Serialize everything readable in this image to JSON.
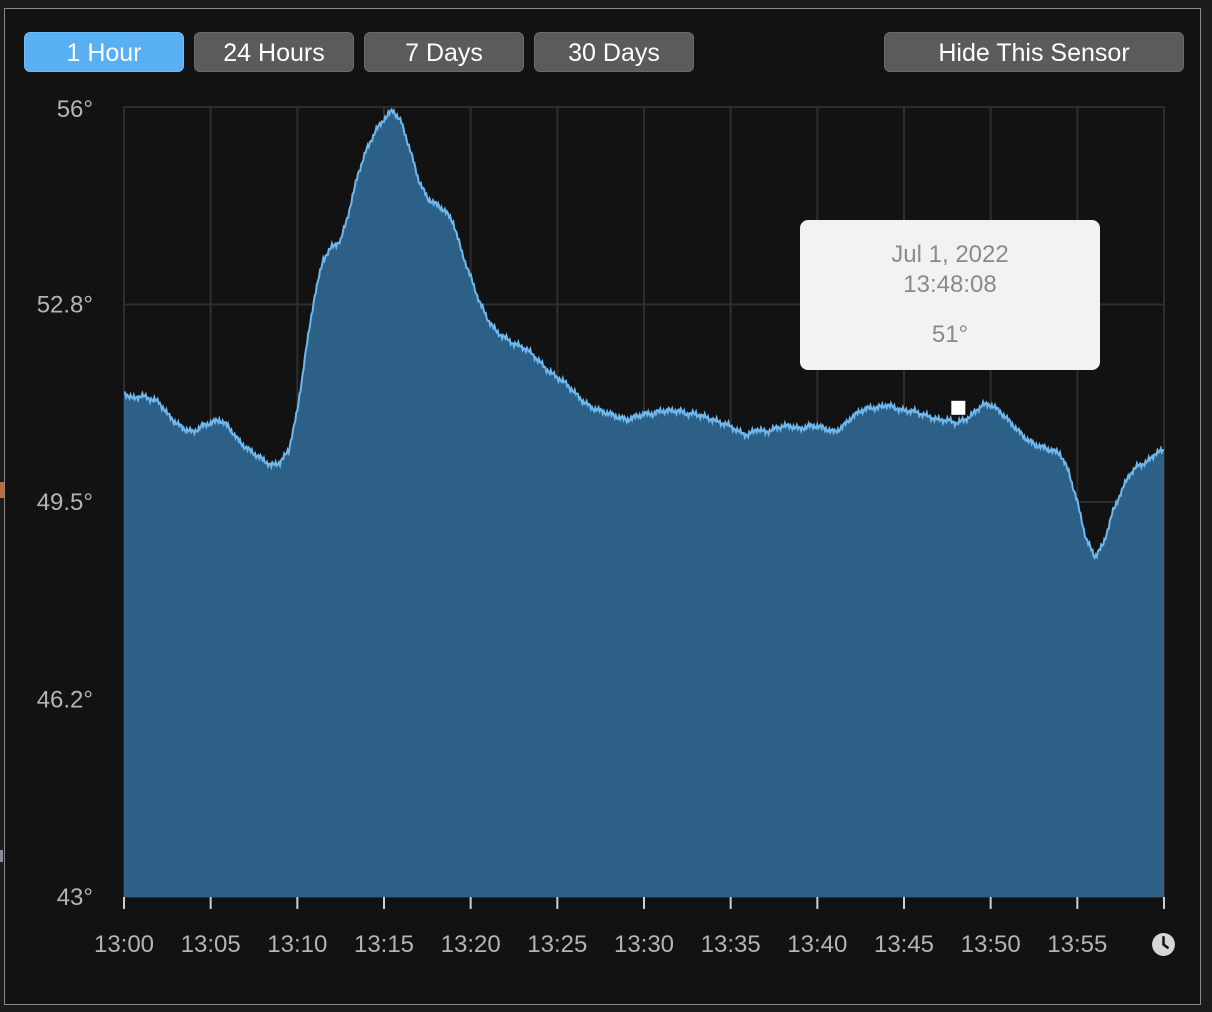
{
  "toolbar": {
    "buttons": [
      "1 Hour",
      "24 Hours",
      "7 Days",
      "30 Days"
    ],
    "active": "1 Hour",
    "hide_label": "Hide This Sensor"
  },
  "tooltip": {
    "date": "Jul 1, 2022",
    "time": "13:48:08",
    "value": "51°"
  },
  "icons": {
    "time_range": "clock-icon"
  },
  "colors": {
    "background": "#121212",
    "area_fill": "#2d6087",
    "line": "#6eb8ee",
    "active_button": "#58aff1",
    "button": "#5b5b5b",
    "grid": "#2e2e2e",
    "tooltip_bg": "#f2f2f2"
  },
  "chart_data": {
    "type": "area",
    "title": "",
    "xlabel": "",
    "ylabel": "",
    "unit": "°",
    "x_tick_labels": [
      "13:00",
      "13:05",
      "13:10",
      "13:15",
      "13:20",
      "13:25",
      "13:30",
      "13:35",
      "13:40",
      "13:45",
      "13:50",
      "13:55"
    ],
    "y_tick_labels": [
      "56°",
      "52.8°",
      "49.5°",
      "46.2°",
      "43°"
    ],
    "xlim_minutes": [
      0,
      60
    ],
    "ylim": [
      43,
      56
    ],
    "grid": true,
    "highlight": {
      "time": "13:48:08",
      "value": 51
    },
    "series": [
      {
        "values": [
          [
            0.0,
            51.3
          ],
          [
            0.5,
            51.2
          ],
          [
            1.0,
            51.25
          ],
          [
            1.5,
            51.2
          ],
          [
            2.0,
            51.15
          ],
          [
            2.5,
            50.95
          ],
          [
            3.0,
            50.8
          ],
          [
            3.5,
            50.7
          ],
          [
            4.0,
            50.65
          ],
          [
            4.5,
            50.75
          ],
          [
            5.0,
            50.8
          ],
          [
            5.5,
            50.85
          ],
          [
            6.0,
            50.75
          ],
          [
            6.5,
            50.55
          ],
          [
            7.0,
            50.4
          ],
          [
            7.5,
            50.3
          ],
          [
            8.0,
            50.2
          ],
          [
            8.5,
            50.1
          ],
          [
            9.0,
            50.15
          ],
          [
            9.5,
            50.35
          ],
          [
            10.0,
            51.0
          ],
          [
            10.5,
            52.0
          ],
          [
            11.0,
            52.9
          ],
          [
            11.5,
            53.5
          ],
          [
            12.0,
            53.7
          ],
          [
            12.5,
            53.8
          ],
          [
            13.0,
            54.3
          ],
          [
            13.5,
            54.9
          ],
          [
            14.0,
            55.3
          ],
          [
            14.5,
            55.6
          ],
          [
            15.0,
            55.8
          ],
          [
            15.5,
            55.95
          ],
          [
            16.0,
            55.75
          ],
          [
            16.5,
            55.3
          ],
          [
            17.0,
            54.8
          ],
          [
            17.5,
            54.5
          ],
          [
            18.0,
            54.4
          ],
          [
            18.5,
            54.3
          ],
          [
            19.0,
            54.1
          ],
          [
            19.5,
            53.6
          ],
          [
            20.0,
            53.2
          ],
          [
            20.5,
            52.8
          ],
          [
            21.0,
            52.5
          ],
          [
            21.5,
            52.3
          ],
          [
            22.0,
            52.2
          ],
          [
            22.5,
            52.1
          ],
          [
            23.0,
            52.05
          ],
          [
            23.5,
            51.95
          ],
          [
            24.0,
            51.8
          ],
          [
            24.5,
            51.65
          ],
          [
            25.0,
            51.55
          ],
          [
            25.5,
            51.45
          ],
          [
            26.0,
            51.3
          ],
          [
            26.5,
            51.15
          ],
          [
            27.0,
            51.05
          ],
          [
            27.5,
            51.0
          ],
          [
            28.0,
            50.95
          ],
          [
            28.5,
            50.9
          ],
          [
            29.0,
            50.85
          ],
          [
            29.5,
            50.9
          ],
          [
            30.0,
            50.95
          ],
          [
            30.5,
            50.95
          ],
          [
            31.0,
            51.0
          ],
          [
            31.5,
            51.0
          ],
          [
            32.0,
            51.0
          ],
          [
            32.5,
            50.95
          ],
          [
            33.0,
            50.95
          ],
          [
            33.5,
            50.9
          ],
          [
            34.0,
            50.85
          ],
          [
            34.5,
            50.8
          ],
          [
            35.0,
            50.75
          ],
          [
            35.5,
            50.65
          ],
          [
            36.0,
            50.6
          ],
          [
            36.5,
            50.7
          ],
          [
            37.0,
            50.65
          ],
          [
            37.5,
            50.7
          ],
          [
            38.0,
            50.75
          ],
          [
            38.5,
            50.75
          ],
          [
            39.0,
            50.7
          ],
          [
            39.5,
            50.75
          ],
          [
            40.0,
            50.75
          ],
          [
            40.5,
            50.7
          ],
          [
            41.0,
            50.65
          ],
          [
            41.5,
            50.75
          ],
          [
            42.0,
            50.9
          ],
          [
            42.5,
            51.0
          ],
          [
            43.0,
            51.05
          ],
          [
            43.5,
            51.05
          ],
          [
            44.0,
            51.1
          ],
          [
            44.5,
            51.05
          ],
          [
            45.0,
            51.0
          ],
          [
            45.5,
            51.0
          ],
          [
            46.0,
            50.95
          ],
          [
            46.5,
            50.9
          ],
          [
            47.0,
            50.85
          ],
          [
            47.5,
            50.85
          ],
          [
            48.0,
            50.8
          ],
          [
            48.5,
            50.85
          ],
          [
            49.0,
            50.95
          ],
          [
            49.5,
            51.1
          ],
          [
            50.0,
            51.1
          ],
          [
            50.5,
            51.0
          ],
          [
            51.0,
            50.85
          ],
          [
            51.5,
            50.7
          ],
          [
            52.0,
            50.55
          ],
          [
            52.5,
            50.45
          ],
          [
            53.0,
            50.4
          ],
          [
            53.5,
            50.35
          ],
          [
            54.0,
            50.3
          ],
          [
            54.5,
            50.0
          ],
          [
            55.0,
            49.5
          ],
          [
            55.5,
            48.9
          ],
          [
            56.0,
            48.6
          ],
          [
            56.5,
            48.8
          ],
          [
            57.0,
            49.3
          ],
          [
            57.5,
            49.65
          ],
          [
            58.0,
            49.95
          ],
          [
            58.5,
            50.1
          ],
          [
            59.0,
            50.15
          ],
          [
            59.5,
            50.3
          ],
          [
            60.0,
            50.35
          ]
        ]
      }
    ]
  }
}
